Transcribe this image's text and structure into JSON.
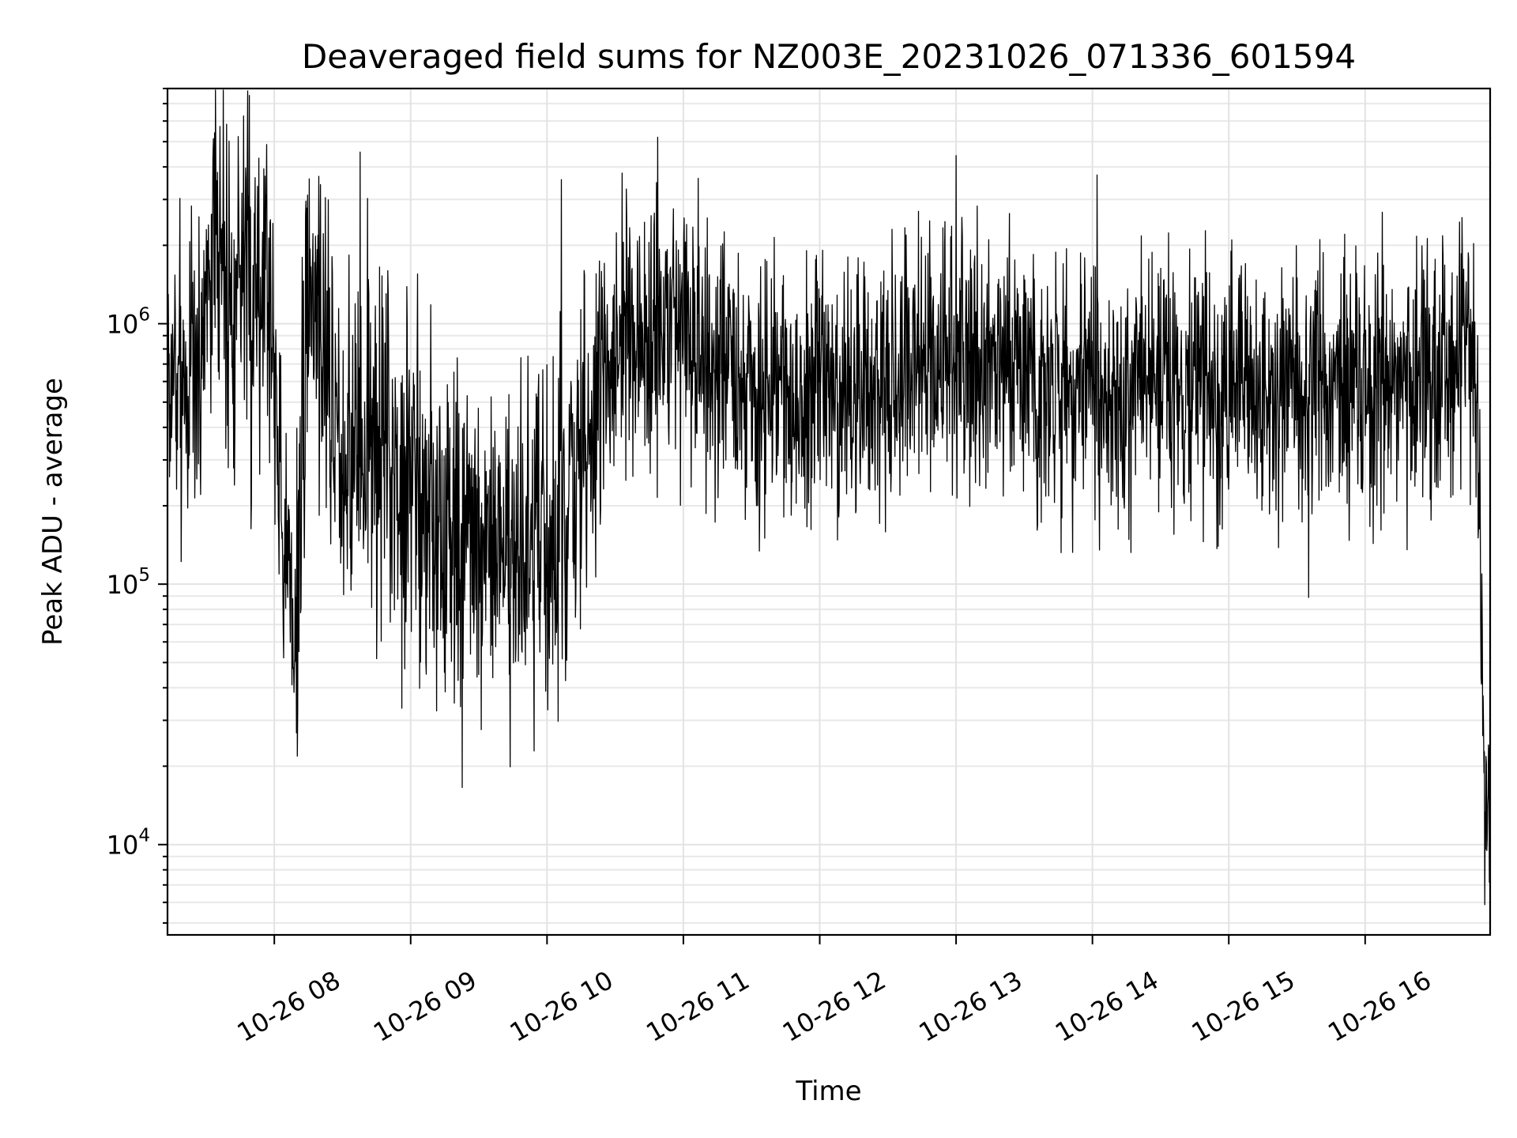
{
  "chart_data": {
    "type": "line",
    "title": "Deaveraged field sums for NZ003E_20231026_071336_601594",
    "xlabel": "Time",
    "ylabel": "Peak ADU - average",
    "x_scale": "time",
    "y_scale": "log",
    "xlim": [
      "2023-10-26 07:13",
      "2023-10-26 16:55"
    ],
    "ylim": [
      4500,
      8000000
    ],
    "x_ticks": [
      "10-26 08",
      "10-26 09",
      "10-26 10",
      "10-26 11",
      "10-26 12",
      "10-26 13",
      "10-26 14",
      "10-26 15",
      "10-26 16"
    ],
    "y_ticks": [
      {
        "value": 10000,
        "base": "10",
        "exp": "4"
      },
      {
        "value": 100000,
        "base": "10",
        "exp": "5"
      },
      {
        "value": 1000000,
        "base": "10",
        "exp": "6"
      }
    ],
    "grid": true,
    "legend": "none",
    "line_color": "#000000",
    "series": [
      {
        "x": [
          "07:13",
          "07:20",
          "07:27",
          "07:30",
          "07:35",
          "07:40",
          "07:45",
          "07:50",
          "07:55",
          "08:00",
          "08:05",
          "08:10",
          "08:15",
          "08:20",
          "08:25",
          "08:30",
          "08:40",
          "08:50",
          "09:00",
          "09:15",
          "09:30",
          "09:45",
          "10:00",
          "10:15",
          "10:30",
          "10:40",
          "10:50",
          "11:00",
          "11:15",
          "11:30",
          "11:45",
          "12:00",
          "12:30",
          "13:00",
          "13:30",
          "14:00",
          "14:30",
          "15:00",
          "15:30",
          "16:00",
          "16:30",
          "16:40",
          "16:45",
          "16:50",
          "16:52",
          "16:55"
        ],
        "values": [
          600000,
          550000,
          700000,
          1500000,
          2500000,
          1200000,
          2000000,
          1000000,
          2200000,
          800000,
          100000,
          80000,
          1500000,
          1200000,
          500000,
          400000,
          300000,
          350000,
          250000,
          150000,
          120000,
          130000,
          140000,
          250000,
          900000,
          800000,
          900000,
          1000000,
          700000,
          500000,
          550000,
          520000,
          600000,
          800000,
          600000,
          550000,
          600000,
          500000,
          550000,
          600000,
          600000,
          650000,
          1300000,
          400000,
          20000,
          15000
        ]
      }
    ]
  }
}
